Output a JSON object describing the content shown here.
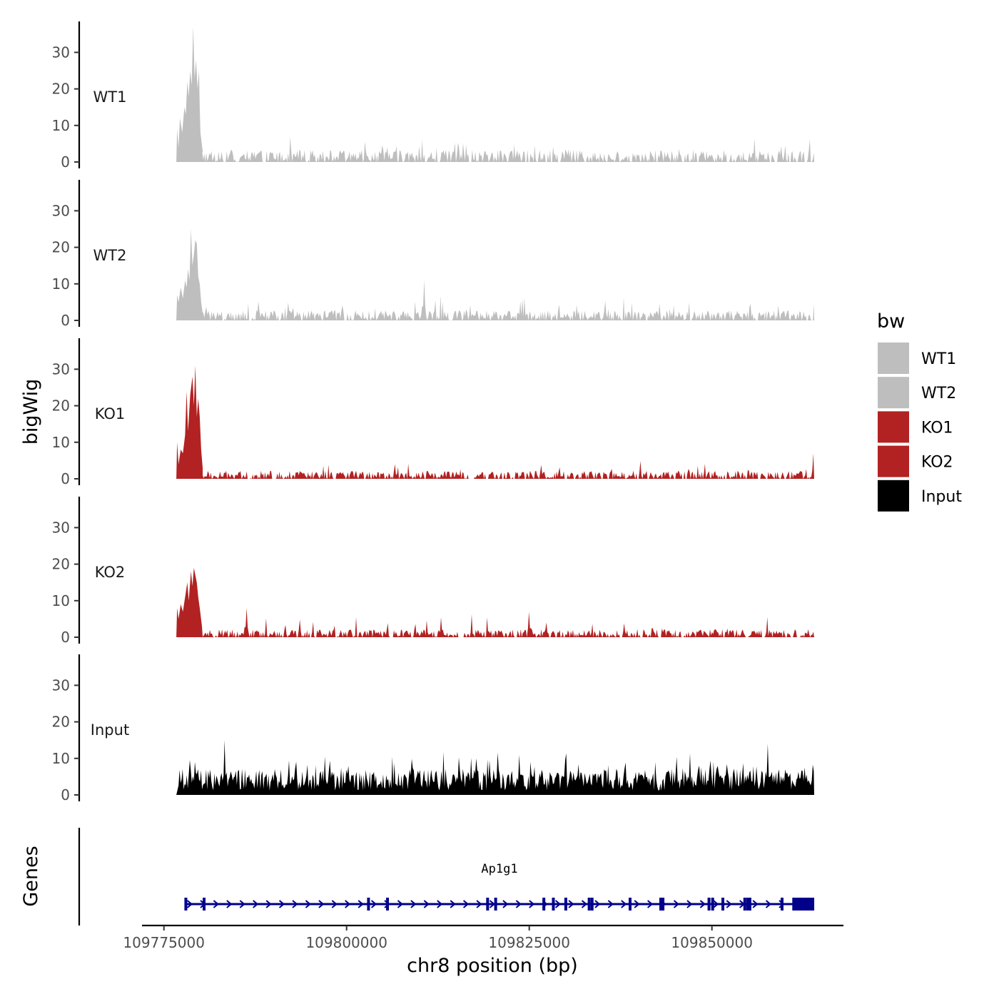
{
  "chart_data": {
    "type": "area",
    "ylabel": "bigWig",
    "xlabel": "chr8 position (bp)",
    "x_ticks": [
      109775000,
      109800000,
      109825000,
      109850000
    ],
    "x_tick_labels": [
      "109775000",
      "109800000",
      "109825000",
      "109850000"
    ],
    "xlim": [
      109772000,
      109868000
    ],
    "signal_range": [
      109776700,
      109864000
    ],
    "ylim": [
      0,
      38
    ],
    "y_ticks": [
      0,
      10,
      20,
      30
    ],
    "y_tick_labels": [
      "0",
      "10",
      "20",
      "30"
    ],
    "legend": {
      "title": "bw",
      "entries": [
        {
          "name": "WT1",
          "color": "#bebebe"
        },
        {
          "name": "WT2",
          "color": "#bebebe"
        },
        {
          "name": "KO1",
          "color": "#b22222"
        },
        {
          "name": "KO2",
          "color": "#b22222"
        },
        {
          "name": "Input",
          "color": "#000000"
        }
      ]
    },
    "series": [
      {
        "name": "WT1",
        "label": "WT1",
        "color": "#bebebe",
        "peak_end": 109779800,
        "peak_points": [
          [
            109776700,
            0
          ],
          [
            109776800,
            9
          ],
          [
            109777000,
            4
          ],
          [
            109777200,
            12
          ],
          [
            109777500,
            8
          ],
          [
            109777800,
            15
          ],
          [
            109778000,
            13
          ],
          [
            109778200,
            22
          ],
          [
            109778400,
            18
          ],
          [
            109778600,
            25
          ],
          [
            109778800,
            21
          ],
          [
            109779000,
            37
          ],
          [
            109779200,
            23
          ],
          [
            109779400,
            28
          ],
          [
            109779600,
            20
          ],
          [
            109779800,
            25
          ],
          [
            109779900,
            15
          ],
          [
            109780000,
            8
          ],
          [
            109780300,
            3
          ]
        ],
        "background_level": 3,
        "background_max": 7
      },
      {
        "name": "WT2",
        "label": "WT2",
        "color": "#bebebe",
        "peak_end": 109779800,
        "peak_points": [
          [
            109776700,
            0
          ],
          [
            109776800,
            7
          ],
          [
            109777000,
            5
          ],
          [
            109777300,
            9
          ],
          [
            109777600,
            6
          ],
          [
            109777900,
            11
          ],
          [
            109778100,
            9
          ],
          [
            109778300,
            14
          ],
          [
            109778500,
            11
          ],
          [
            109778700,
            25
          ],
          [
            109778900,
            15
          ],
          [
            109779100,
            18
          ],
          [
            109779300,
            22
          ],
          [
            109779500,
            21
          ],
          [
            109779700,
            12
          ],
          [
            109779900,
            10
          ],
          [
            109780100,
            5
          ],
          [
            109780300,
            2
          ]
        ],
        "background_level": 2.5,
        "background_max": 7,
        "extra_peaks": [
          [
            109810600,
            11
          ]
        ]
      },
      {
        "name": "KO1",
        "label": "KO1",
        "color": "#b22222",
        "peak_end": 109780000,
        "peak_points": [
          [
            109776700,
            0
          ],
          [
            109776800,
            10
          ],
          [
            109777000,
            4
          ],
          [
            109777300,
            8
          ],
          [
            109777600,
            7
          ],
          [
            109777900,
            12
          ],
          [
            109778100,
            24
          ],
          [
            109778300,
            13
          ],
          [
            109778600,
            23
          ],
          [
            109778900,
            28
          ],
          [
            109779100,
            20
          ],
          [
            109779300,
            31
          ],
          [
            109779500,
            17
          ],
          [
            109779700,
            22
          ],
          [
            109779900,
            17
          ],
          [
            109780100,
            8
          ],
          [
            109780300,
            3
          ]
        ],
        "background_level": 2,
        "background_max": 5,
        "extra_peaks": [
          [
            109863900,
            7
          ]
        ]
      },
      {
        "name": "KO2",
        "label": "KO2",
        "color": "#b22222",
        "peak_end": 109780000,
        "peak_points": [
          [
            109776700,
            0
          ],
          [
            109776800,
            8
          ],
          [
            109777000,
            5
          ],
          [
            109777300,
            9
          ],
          [
            109777600,
            7
          ],
          [
            109777900,
            11
          ],
          [
            109778200,
            15
          ],
          [
            109778400,
            10
          ],
          [
            109778700,
            18
          ],
          [
            109778900,
            14
          ],
          [
            109779100,
            19
          ],
          [
            109779300,
            17
          ],
          [
            109779500,
            15
          ],
          [
            109779700,
            11
          ],
          [
            109779900,
            8
          ],
          [
            109780200,
            3
          ]
        ],
        "background_level": 2,
        "background_max": 7,
        "extra_peaks": [
          [
            109786300,
            8
          ],
          [
            109825000,
            7
          ]
        ]
      },
      {
        "name": "Input",
        "label": "Input",
        "color": "#000000",
        "peak_end": 109776700,
        "peak_points": [],
        "background_level": 6,
        "background_max": 15,
        "extra_peaks": [
          [
            109783300,
            15
          ],
          [
            109857700,
            14
          ]
        ]
      }
    ],
    "gene_track": {
      "label": "Genes",
      "gene_name": "Ap1g1",
      "color": "#00008b",
      "start": 109777900,
      "end": 109864000,
      "strand": "+",
      "exons": [
        109778000,
        109780500,
        109803000,
        109805600,
        109819300,
        109820400,
        109827000,
        109828300,
        109830000,
        109833200,
        109833600,
        109838800,
        109843000,
        109843300,
        109849600,
        109850100,
        109851500,
        109854500,
        109854900,
        109855200,
        109859600
      ],
      "utr_block": [
        109861000,
        109864000
      ]
    }
  }
}
